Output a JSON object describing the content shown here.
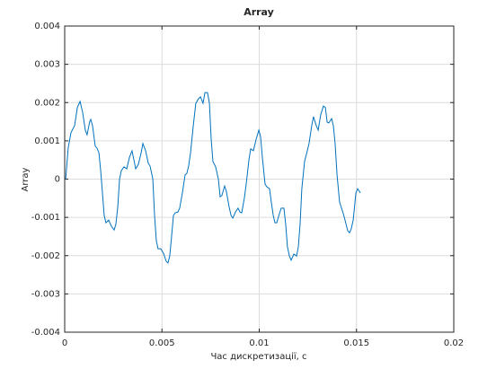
{
  "chart_data": {
    "type": "line",
    "title": "Array",
    "xlabel": "Час дискретизації, с",
    "ylabel": "Array",
    "xlim": [
      0,
      0.02
    ],
    "xticks": [
      0,
      0.005,
      0.01,
      0.015,
      0.02
    ],
    "ylim": [
      -0.004,
      0.004
    ],
    "yticks": [
      -0.004,
      -0.003,
      -0.002,
      -0.001,
      0,
      0.001,
      0.002,
      0.003,
      0.004
    ],
    "grid": true,
    "series": [
      {
        "color": "#0072bd",
        "x": [
          5e-05,
          0.00018,
          0.00032,
          0.00051,
          0.00065,
          0.00079,
          0.00092,
          0.00106,
          0.00115,
          0.00129,
          0.00134,
          0.00143,
          0.00157,
          0.00166,
          0.00176,
          0.00185,
          0.00194,
          0.00203,
          0.00212,
          0.00226,
          0.0024,
          0.00254,
          0.00263,
          0.00273,
          0.00282,
          0.00291,
          0.00305,
          0.00319,
          0.00333,
          0.00346,
          0.00356,
          0.00365,
          0.00379,
          0.00393,
          0.00402,
          0.00416,
          0.0043,
          0.00439,
          0.00453,
          0.00462,
          0.00471,
          0.0048,
          0.00494,
          0.00508,
          0.00522,
          0.00531,
          0.0054,
          0.0055,
          0.00559,
          0.00568,
          0.00582,
          0.00591,
          0.00605,
          0.00619,
          0.00628,
          0.00637,
          0.00647,
          0.00661,
          0.00674,
          0.00688,
          0.00698,
          0.00711,
          0.00721,
          0.00734,
          0.00744,
          0.00753,
          0.00762,
          0.00776,
          0.0079,
          0.00799,
          0.00808,
          0.00822,
          0.00831,
          0.00845,
          0.00855,
          0.00864,
          0.00878,
          0.00891,
          0.00901,
          0.0091,
          0.00924,
          0.00933,
          0.00947,
          0.00956,
          0.0097,
          0.00984,
          0.00998,
          0.01007,
          0.01016,
          0.0103,
          0.01039,
          0.01053,
          0.01062,
          0.01072,
          0.01081,
          0.0109,
          0.01104,
          0.01113,
          0.01127,
          0.01136,
          0.01145,
          0.01155,
          0.01164,
          0.01178,
          0.01192,
          0.01201,
          0.0121,
          0.01219,
          0.01233,
          0.01247,
          0.01256,
          0.0127,
          0.01279,
          0.01293,
          0.01303,
          0.01316,
          0.0133,
          0.0134,
          0.01349,
          0.01358,
          0.01372,
          0.01381,
          0.0139,
          0.014,
          0.01413,
          0.01423,
          0.01432,
          0.01441,
          0.01455,
          0.01464,
          0.01473,
          0.01483,
          0.01497,
          0.01506,
          0.0152
        ],
        "values": [
          0,
          0.00081,
          0.00121,
          0.0014,
          0.00187,
          0.00203,
          0.00175,
          0.00128,
          0.00116,
          0.00151,
          0.00156,
          0.0014,
          0.00086,
          0.00081,
          0.00069,
          0.00022,
          -0.00036,
          -0.00095,
          -0.00114,
          -0.00107,
          -0.00123,
          -0.00133,
          -0.00118,
          -0.00072,
          0,
          0.00022,
          0.00032,
          0.00027,
          0.00057,
          0.00074,
          0.0005,
          0.00027,
          0.00039,
          0.00069,
          0.00093,
          0.00074,
          0.00041,
          0.00034,
          0,
          -0.00095,
          -0.00161,
          -0.00182,
          -0.00182,
          -0.00194,
          -0.00215,
          -0.00219,
          -0.00201,
          -0.00147,
          -0.00095,
          -0.00088,
          -0.00086,
          -0.00076,
          -0.00036,
          0.00011,
          0.00015,
          0.00034,
          0.00069,
          0.0014,
          0.00198,
          0.0021,
          0.00215,
          0.00198,
          0.00226,
          0.00226,
          0.00198,
          0.00104,
          0.00046,
          0.00032,
          0,
          -0.00046,
          -0.00043,
          -0.00018,
          -0.00032,
          -0.00072,
          -0.00095,
          -0.00102,
          -0.00086,
          -0.00076,
          -0.00086,
          -0.00088,
          -0.00048,
          -0.00013,
          0.0005,
          0.00079,
          0.00074,
          0.00104,
          0.00128,
          0.00111,
          0.00057,
          -0.00013,
          -0.0002,
          -0.00025,
          -0.0006,
          -0.00095,
          -0.00114,
          -0.00114,
          -0.0009,
          -0.00076,
          -0.00076,
          -0.00118,
          -0.00177,
          -0.00201,
          -0.00212,
          -0.00196,
          -0.00201,
          -0.00177,
          -0.00118,
          -0.00025,
          0.00046,
          0.00074,
          0.00093,
          0.0014,
          0.00163,
          0.0014,
          0.00128,
          0.00168,
          0.00191,
          0.00187,
          0.00149,
          0.00147,
          0.00158,
          0.0014,
          0.00093,
          0.00011,
          -0.0006,
          -0.00076,
          -0.0009,
          -0.00107,
          -0.00135,
          -0.0014,
          -0.0013,
          -0.00107,
          -0.00036,
          -0.00025,
          -0.00036
        ]
      }
    ]
  }
}
